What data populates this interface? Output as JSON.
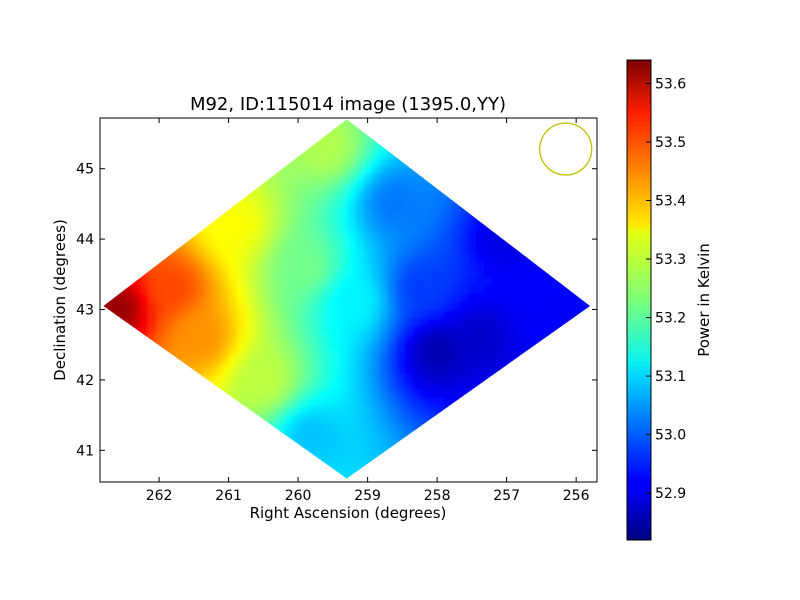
{
  "chart_data": {
    "type": "heatmap",
    "title": "M92, ID:115014 image (1395.0,YY)",
    "xlabel": "Right Ascension (degrees)",
    "ylabel": "Declination (degrees)",
    "xlim": [
      262.85,
      255.7
    ],
    "ylim": [
      40.55,
      45.72
    ],
    "x_ticks": [
      262,
      261,
      260,
      259,
      258,
      257,
      256
    ],
    "y_ticks": [
      41,
      42,
      43,
      44,
      45
    ],
    "colorbar": {
      "label": "Power in Kelvin",
      "range": [
        52.82,
        53.64
      ],
      "ticks": [
        "52.9",
        "53.0",
        "53.1",
        "53.2",
        "53.3",
        "53.4",
        "53.5",
        "53.6"
      ],
      "colormap": "jet"
    },
    "footprint": {
      "shape": "diamond",
      "vertices": [
        [
          262.8,
          43.05
        ],
        [
          259.3,
          45.7
        ],
        [
          255.8,
          43.05
        ],
        [
          259.3,
          40.6
        ]
      ]
    },
    "samples": [
      {
        "ra": 262.6,
        "dec": 43.0,
        "power": 53.62
      },
      {
        "ra": 261.8,
        "dec": 43.3,
        "power": 53.48
      },
      {
        "ra": 261.4,
        "dec": 42.6,
        "power": 53.42
      },
      {
        "ra": 260.9,
        "dec": 44.2,
        "power": 53.33
      },
      {
        "ra": 260.5,
        "dec": 42.0,
        "power": 53.28
      },
      {
        "ra": 259.6,
        "dec": 45.3,
        "power": 53.27
      },
      {
        "ra": 259.9,
        "dec": 43.6,
        "power": 53.22
      },
      {
        "ra": 259.2,
        "dec": 43.1,
        "power": 53.12
      },
      {
        "ra": 259.8,
        "dec": 41.2,
        "power": 53.08
      },
      {
        "ra": 258.6,
        "dec": 44.5,
        "power": 53.02
      },
      {
        "ra": 258.2,
        "dec": 43.3,
        "power": 52.97
      },
      {
        "ra": 258.0,
        "dec": 42.4,
        "power": 52.86
      },
      {
        "ra": 257.0,
        "dec": 44.0,
        "power": 52.9
      },
      {
        "ra": 256.2,
        "dec": 43.0,
        "power": 52.92
      },
      {
        "ra": 257.4,
        "dec": 42.6,
        "power": 52.88
      }
    ],
    "beam_marker": {
      "ra": 256.15,
      "dec": 45.28,
      "color": "#bfbf00"
    },
    "grid": false,
    "colors": {
      "axes": "#000000",
      "background": "#ffffff"
    }
  }
}
